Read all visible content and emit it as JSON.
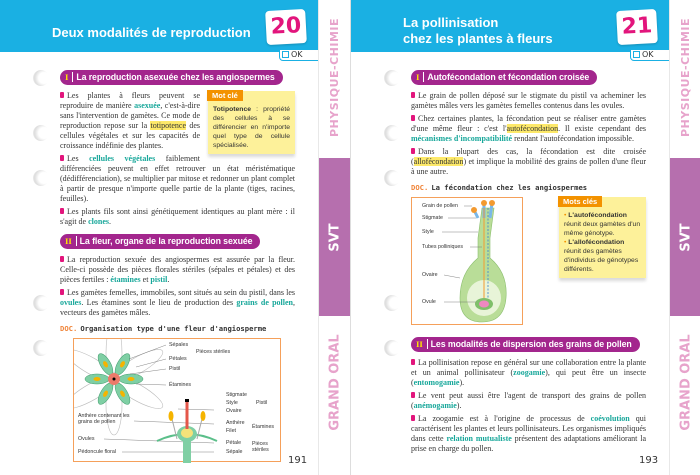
{
  "colors": {
    "header": "#1ab0e3",
    "section": "#a3268d",
    "term": "#17a79a",
    "highlight": "#fde96a",
    "number": "#e2157c",
    "svt_tab": "#b66fae"
  },
  "tabs": {
    "physique": "PHYSIQUE-CHIMIE",
    "svt": "SVT",
    "grand_oral": "GRAND ORAL"
  },
  "left": {
    "title": "Deux modalités de reproduction",
    "number": "20",
    "ok": "OK",
    "page_number": "191",
    "sec1": {
      "num": "I",
      "title": "La reproduction asexuée chez les angiospermes"
    },
    "sec1_paras": [
      [
        [
          "Les plantes à fleurs peuvent se reproduire de manière ",
          ""
        ],
        [
          "asexuée",
          "term"
        ],
        [
          ", c'est-à-dire sans l'intervention de gamètes. Ce mode de reproduction repose sur la ",
          ""
        ],
        [
          "totipotence",
          "hl"
        ],
        [
          " des cellules végétales et sur les capacités de croissance indéfinie des plantes.",
          ""
        ]
      ],
      [
        [
          "Les ",
          ""
        ],
        [
          "cellules végétales",
          "term"
        ],
        [
          " faiblement différenciées peuvent en effet retrouver un état méristématique (dédifférenciation), se multiplier par mitose et redonner un plant complet à partir de presque n'importe quelle partie de la plante (tiges, racines, feuilles).",
          ""
        ]
      ],
      [
        [
          "Les plants fils sont ainsi génétiquement identiques au plant mère : il s'agit de ",
          ""
        ],
        [
          "clones",
          "term"
        ],
        [
          ".",
          ""
        ]
      ]
    ],
    "key": {
      "label": "Mot clé",
      "term": "Totipotence",
      "text": " : propriété des cellules à se différencier en n'importe quel type de cellule spécialisée."
    },
    "sec2": {
      "num": "II",
      "title": "La fleur, organe de la reproduction sexuée"
    },
    "sec2_paras": [
      [
        [
          "La reproduction sexuée des angiospermes est assurée par la fleur. Celle-ci possède des pièces florales stériles (sépales et pétales) et des pièces fertiles : ",
          ""
        ],
        [
          "étamines",
          "term"
        ],
        [
          " et ",
          ""
        ],
        [
          "pistil",
          "term"
        ],
        [
          ".",
          ""
        ]
      ],
      [
        [
          "Les gamètes femelles, immobiles, sont situés au sein du pistil, dans les ",
          ""
        ],
        [
          "ovules",
          "term"
        ],
        [
          ". Les étamines sont le lieu de production des ",
          ""
        ],
        [
          "grains de pollen",
          "term"
        ],
        [
          ", vecteurs des gamètes mâles.",
          ""
        ]
      ]
    ],
    "doc": {
      "prefix": "DOC.",
      "title": "Organisation type d'une fleur d'angiosperme"
    },
    "diagram": {
      "sepales": "Sépales",
      "petales": "Pétales",
      "pieces_steriles": "Pièces stériles",
      "pistil": "Pistil",
      "etamines": "Étamines",
      "stigmate": "Stigmate",
      "style": "Style",
      "ovaire": "Ovaire",
      "pistil2": "Pistil",
      "anthere_pollen": "Anthère contenant les grains de pollen",
      "anthere": "Anthère",
      "filet": "Filet",
      "etamines2": "Étamines",
      "ovules": "Ovules",
      "petale": "Pétale",
      "sepale": "Sépale",
      "pieces_steriles2": "Pièces stériles",
      "pedoncule": "Pédoncule floral"
    }
  },
  "right": {
    "title_line1": "La pollinisation",
    "title_line2": "chez les plantes à fleurs",
    "number": "21",
    "ok": "OK",
    "page_number": "193",
    "sec1": {
      "num": "I",
      "title": "Autofécondation et fécondation croisée"
    },
    "sec1_paras": [
      [
        [
          "Le grain de pollen déposé sur le stigmate du pistil va acheminer les gamètes mâles vers les gamètes femelles contenus dans les ovules.",
          ""
        ]
      ],
      [
        [
          "Chez certaines plantes, la fécondation peut se réaliser entre gamètes d'une même fleur : c'est l'",
          ""
        ],
        [
          "autofécondation",
          "hl"
        ],
        [
          ". Il existe cependant des ",
          ""
        ],
        [
          "mécanismes d'incompatibilité",
          "term"
        ],
        [
          " rendant l'autofécondation impossible.",
          ""
        ]
      ],
      [
        [
          "Dans la plupart des cas, la fécondation est dite croisée (",
          ""
        ],
        [
          "allofécondation",
          "hl"
        ],
        [
          ") et implique la mobilité des grains de pollen d'une fleur à une autre.",
          ""
        ]
      ]
    ],
    "doc": {
      "prefix": "DOC.",
      "title": "La fécondation chez les angiospermes"
    },
    "diagram": {
      "grain": "Grain de pollen",
      "stigmate": "Stigmate",
      "style": "Style",
      "tubes": "Tubes polliniques",
      "ovaire": "Ovaire",
      "ovule": "Ovule"
    },
    "key": {
      "label": "Mots clés",
      "item1_term": "L'autofécondation",
      "item1_text": " réunit deux gamètes d'un même génotype.",
      "item2_term": "L'allofécondation",
      "item2_text": " réunit des gamètes d'individus de génotypes différents."
    },
    "sec2": {
      "num": "II",
      "title": "Les modalités de dispersion des grains de pollen"
    },
    "sec2_paras": [
      [
        [
          "La pollinisation repose en général sur une collaboration entre la plante et un animal pollinisateur (",
          ""
        ],
        [
          "zoogamie",
          "term"
        ],
        [
          "), qui peut être un insecte (",
          ""
        ],
        [
          "entomogamie",
          "term"
        ],
        [
          ").",
          ""
        ]
      ],
      [
        [
          "Le vent peut aussi être l'agent de transport des grains de pollen (",
          ""
        ],
        [
          "anémogamie",
          "term"
        ],
        [
          ").",
          ""
        ]
      ],
      [
        [
          "La zoogamie est à l'origine de processus de ",
          ""
        ],
        [
          "coévolution",
          "term"
        ],
        [
          " qui caractérisent les plantes et leurs pollinisateurs. Les organismes impliqués dans cette ",
          ""
        ],
        [
          "relation mutualiste",
          "term"
        ],
        [
          " présentent des adaptations améliorant la prise en charge du pollen.",
          ""
        ]
      ]
    ]
  }
}
